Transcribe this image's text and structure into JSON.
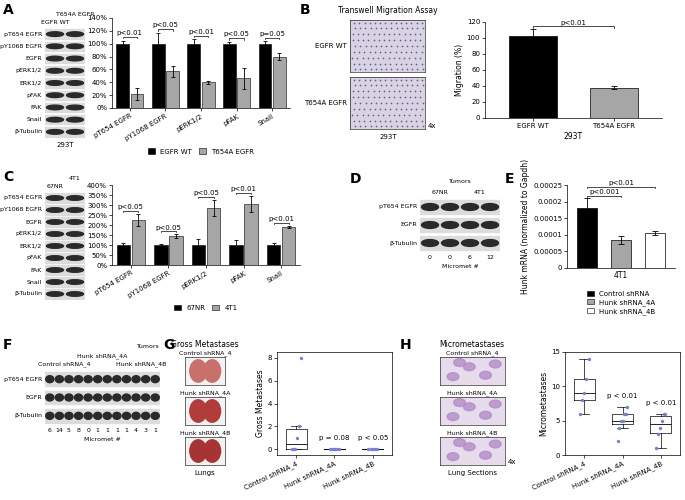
{
  "chart_data": [
    {
      "panel": "A",
      "type": "bar",
      "categories": [
        "pT654 EGFR",
        "pY1068 EGFR",
        "pERK1/2",
        "pFAK",
        "Snail"
      ],
      "series": [
        {
          "name": "EGFR WT",
          "color": "#000000",
          "values": [
            100,
            100,
            100,
            100,
            100
          ],
          "errors": [
            5,
            17,
            7,
            3,
            4
          ]
        },
        {
          "name": "T654A EGFR",
          "color": "#a6a6a6",
          "values": [
            22,
            57,
            40,
            46,
            80
          ],
          "errors": [
            9,
            9,
            2,
            17,
            6
          ]
        }
      ],
      "annotations": [
        "p<0.01",
        "p<0.05",
        "p<0.01",
        "p<0.05",
        "p=0.05"
      ],
      "ylim": [
        0,
        140
      ],
      "yticks": [
        {
          "value": 0,
          "label": "0%"
        },
        {
          "value": 20,
          "label": "20%"
        },
        {
          "value": 40,
          "label": "40%"
        },
        {
          "value": 60,
          "label": "60%"
        },
        {
          "value": 80,
          "label": "80%"
        },
        {
          "value": 100,
          "label": "100%"
        },
        {
          "value": 120,
          "label": "120%"
        },
        {
          "value": 140,
          "label": "140%"
        }
      ],
      "legend": "lower center"
    },
    {
      "panel": "B",
      "type": "bar",
      "categories": [
        "EGFR WT",
        "T654A EGFR"
      ],
      "values": [
        103,
        38
      ],
      "errors": [
        8,
        2
      ],
      "colors": [
        "#000000",
        "#a6a6a6"
      ],
      "ylabel": "Migration (%)",
      "xlabel": "293T",
      "comparisons": [
        {
          "text": "p<0.01",
          "between": [
            "EGFR WT",
            "T654A EGFR"
          ]
        }
      ],
      "ylim": [
        0,
        120
      ],
      "yticks": [
        0,
        20,
        40,
        60,
        80,
        100,
        120
      ]
    },
    {
      "panel": "C",
      "type": "bar",
      "categories": [
        "pT654 EGFR",
        "pY1068 EGFR",
        "pERK1/2",
        "pFAK",
        "Snail"
      ],
      "series": [
        {
          "name": "67NR",
          "color": "#000000",
          "values": [
            100,
            100,
            100,
            100,
            100
          ],
          "errors": [
            10,
            5,
            30,
            25,
            10
          ]
        },
        {
          "name": "4T1",
          "color": "#a6a6a6",
          "values": [
            225,
            145,
            285,
            305,
            190
          ],
          "errors": [
            30,
            8,
            40,
            40,
            5
          ]
        }
      ],
      "annotations": [
        "p<0.05",
        "p<0.05",
        "p<0.05",
        "p<0.01",
        "p<0.01"
      ],
      "ylim": [
        0,
        400
      ],
      "yticks": [
        {
          "value": 0,
          "label": "0%"
        },
        {
          "value": 50,
          "label": "50%"
        },
        {
          "value": 100,
          "label": "100%"
        },
        {
          "value": 150,
          "label": "150%"
        },
        {
          "value": 200,
          "label": "200%"
        },
        {
          "value": 250,
          "label": "250%"
        },
        {
          "value": 300,
          "label": "300%"
        },
        {
          "value": 350,
          "label": "350%"
        },
        {
          "value": 400,
          "label": "400%"
        }
      ],
      "legend": "lower center"
    },
    {
      "panel": "E",
      "type": "bar",
      "categories": [
        "Control shRNA",
        "Hunk shRNA_4A",
        "Hunk shRNA_4B"
      ],
      "values": [
        0.00018,
        8.3e-05,
        0.000105
      ],
      "errors": [
        3e-05,
        1.2e-05,
        5e-06
      ],
      "colors": [
        "#000000",
        "#a6a6a6",
        "#ffffff"
      ],
      "ylabel": "Hunk mRNA (normalized to Gapdh)",
      "xlabel": "4T1",
      "comparisons": [
        {
          "text": "p<0.001",
          "between": [
            "Control shRNA",
            "Hunk shRNA_4A"
          ]
        },
        {
          "text": "p<0.01",
          "between": [
            "Control shRNA",
            "Hunk shRNA_4B"
          ]
        }
      ],
      "ylim": [
        0,
        0.00025
      ],
      "yticks": [
        0,
        {
          "value": 5e-05,
          "label": "0.00005"
        },
        0.0001,
        0.00015,
        0.0002,
        0.00025
      ],
      "tick_labels": "y",
      "legend": "lower center"
    },
    {
      "panel": "G",
      "type": "box",
      "categories": [
        "Control shRNA_4",
        "Hunk shRNA_4A",
        "Hunk shRNA_4B"
      ],
      "points": [
        [
          0,
          0,
          0,
          1,
          2,
          8
        ],
        [
          0,
          0,
          0,
          0,
          0,
          0
        ],
        [
          0,
          0,
          0,
          0,
          0
        ]
      ],
      "annotations": [
        null,
        "p = 0.08",
        "p < 0.05"
      ],
      "ylabel": "Gross Metastases",
      "color": "#7b7fd4",
      "ylim": [
        -0.5,
        8.5
      ],
      "yticks": [
        0,
        2,
        4,
        6,
        8
      ]
    },
    {
      "panel": "H",
      "type": "box",
      "categories": [
        "Control shRNA_4",
        "Hunk shRNA_4A",
        "Hunk shRNA_4B"
      ],
      "points": [
        [
          6,
          8,
          9,
          11,
          14
        ],
        [
          2,
          4,
          5,
          5,
          6,
          6,
          7
        ],
        [
          1,
          3,
          4,
          5,
          6,
          6
        ]
      ],
      "annotations": [
        null,
        "p < 0.01",
        "p < 0.01"
      ],
      "ylabel": "Micrometastases",
      "color": "#7b7fd4",
      "ylim": [
        0,
        15
      ],
      "yticks": [
        0,
        5,
        10,
        15
      ]
    }
  ],
  "blots": [
    {
      "panel": "A",
      "lanes": [
        "EGFR WT",
        "T654A EGFR"
      ],
      "rows": [
        "pT654 EGFR",
        "pY1068 EGFR",
        "EGFR",
        "pERK1/2",
        "ERK1/2",
        "pFAK",
        "FAK",
        "Snail",
        "β-Tubulin"
      ],
      "caption": "293T"
    },
    {
      "panel": "C",
      "lanes": [
        "67NR",
        "4T1"
      ],
      "rows": [
        "pT654 EGFR",
        "pY1068 EGFR",
        "EGFR",
        "pERK1/2",
        "ERK1/2",
        "pFAK",
        "FAK",
        "Snail",
        "β-Tubulin"
      ]
    },
    {
      "panel": "D",
      "groups": [
        "67NR",
        "4T1"
      ],
      "group_label": "Tumors",
      "rows": [
        "pT654 EGFR",
        "EGFR",
        "β-Tubulin"
      ],
      "micromet": [
        0,
        0,
        6,
        12
      ],
      "micromet_label": "Micromet #"
    },
    {
      "panel": "F",
      "groups": [
        "Control shRNA_4",
        "Hunk shRNA_4A",
        "Hunk shRNA_4B"
      ],
      "group_label": "Tumors",
      "rows": [
        "pT654 EGFR",
        "EGFR",
        "β-Tubulin"
      ],
      "micromet": [
        6,
        14,
        5,
        8,
        0,
        1,
        1,
        1,
        1,
        4,
        3,
        1
      ],
      "micromet_label": "Micromet #"
    }
  ],
  "images": [
    {
      "panel": "B",
      "title": "Transwell Migration Assay",
      "labels": [
        "EGFR WT",
        "T654A EGFR"
      ],
      "caption": "293T",
      "magnification": "4x"
    },
    {
      "panel": "G",
      "title": "Gross Metastases",
      "labels": [
        "Control shRNA_4",
        "Hunk shRNA_4A",
        "Hunk shRNA_4B"
      ],
      "caption": "Lungs"
    },
    {
      "panel": "H",
      "title": "Micrometastases",
      "labels": [
        "Control shRNA_4",
        "Hunk shRNA_4A",
        "Hunk shRNA_4B"
      ],
      "caption": "Lung Sections",
      "magnification": "4x"
    }
  ]
}
